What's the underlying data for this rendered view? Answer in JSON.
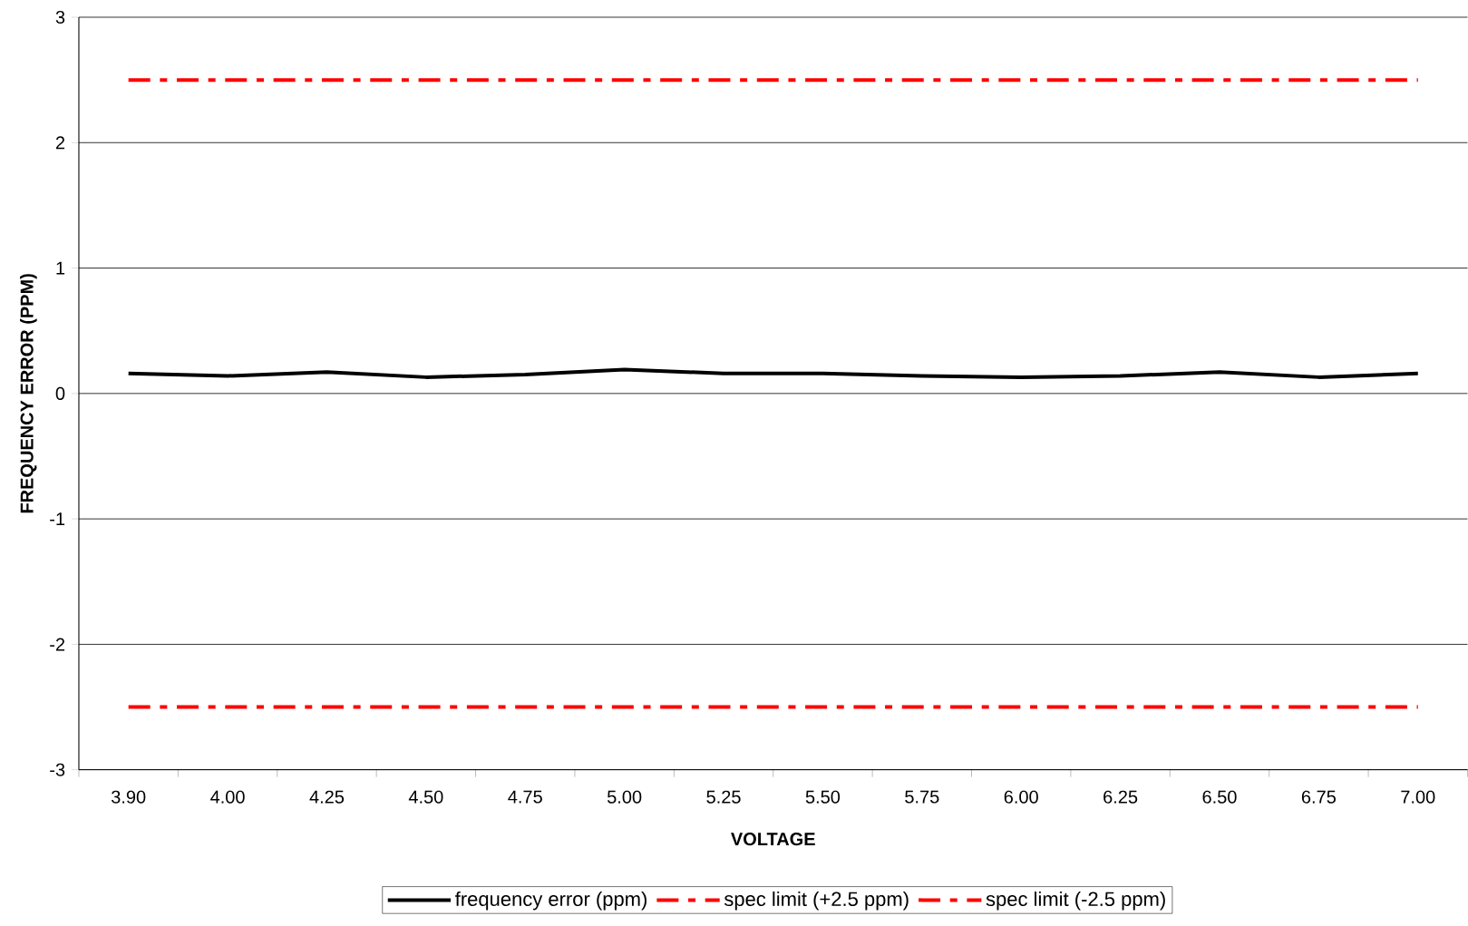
{
  "chart_data": {
    "type": "line",
    "xlabel": "VOLTAGE",
    "ylabel": "FREQUENCY ERROR (PPM)",
    "categories": [
      "3.90",
      "4.00",
      "4.25",
      "4.50",
      "4.75",
      "5.00",
      "5.25",
      "5.50",
      "5.75",
      "6.00",
      "6.25",
      "6.50",
      "6.75",
      "7.00"
    ],
    "series": [
      {
        "name": "frequency error (ppm)",
        "color": "#000000",
        "line_style": "solid",
        "values": [
          0.16,
          0.14,
          0.17,
          0.13,
          0.15,
          0.19,
          0.16,
          0.16,
          0.14,
          0.13,
          0.14,
          0.17,
          0.13,
          0.16
        ]
      },
      {
        "name": "spec limit (+2.5 ppm)",
        "color": "#ff0000",
        "line_style": "dashed",
        "values": [
          2.5,
          2.5,
          2.5,
          2.5,
          2.5,
          2.5,
          2.5,
          2.5,
          2.5,
          2.5,
          2.5,
          2.5,
          2.5,
          2.5
        ]
      },
      {
        "name": "spec limit (-2.5 ppm)",
        "color": "#ff0000",
        "line_style": "dashed",
        "values": [
          -2.5,
          -2.5,
          -2.5,
          -2.5,
          -2.5,
          -2.5,
          -2.5,
          -2.5,
          -2.5,
          -2.5,
          -2.5,
          -2.5,
          -2.5,
          -2.5
        ]
      }
    ],
    "ylim": [
      -3,
      3
    ],
    "yticks": [
      -3,
      -2,
      -1,
      0,
      1,
      2,
      3
    ],
    "grid": "y",
    "legend": "bottom"
  }
}
